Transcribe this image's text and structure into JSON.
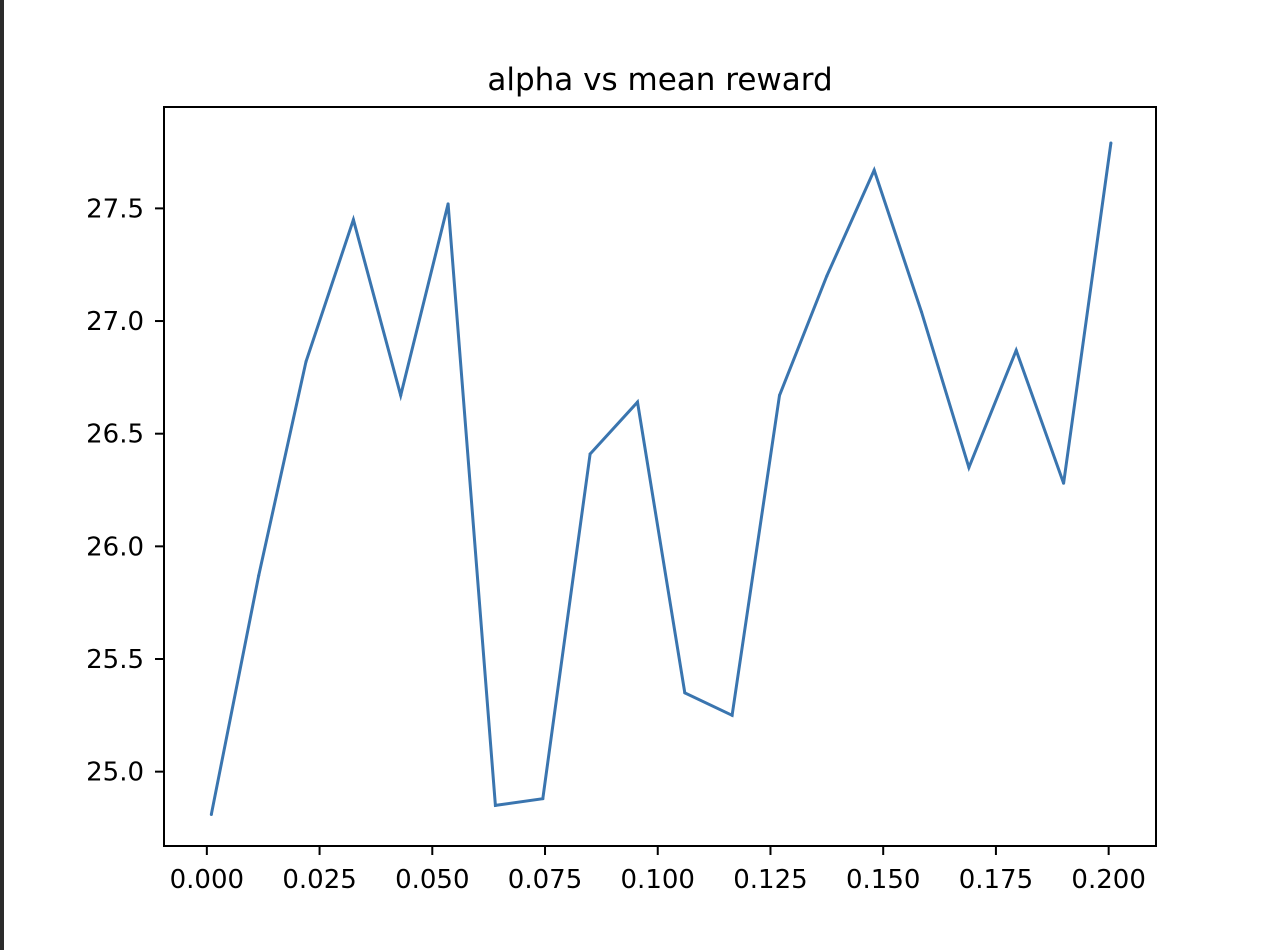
{
  "chart_data": {
    "type": "line",
    "title": "alpha vs mean reward",
    "xlabel": "",
    "ylabel": "",
    "xlim": [
      -0.0095,
      0.2105
    ],
    "ylim": [
      24.67,
      27.95
    ],
    "x_ticks": [
      0.0,
      0.025,
      0.05,
      0.075,
      0.1,
      0.125,
      0.15,
      0.175,
      0.2
    ],
    "x_tick_labels": [
      "0.000",
      "0.025",
      "0.050",
      "0.075",
      "0.100",
      "0.125",
      "0.150",
      "0.175",
      "0.200"
    ],
    "y_ticks": [
      25.0,
      25.5,
      26.0,
      26.5,
      27.0,
      27.5
    ],
    "y_tick_labels": [
      "25.0",
      "25.5",
      "26.0",
      "26.5",
      "27.0",
      "27.5"
    ],
    "grid": false,
    "series": [
      {
        "color": "#3a75af",
        "x": [
          0.001,
          0.0115,
          0.022,
          0.0325,
          0.043,
          0.0535,
          0.064,
          0.0745,
          0.085,
          0.0955,
          0.106,
          0.1165,
          0.127,
          0.1375,
          0.148,
          0.1585,
          0.169,
          0.1795,
          0.19,
          0.2005
        ],
        "y": [
          24.81,
          25.87,
          26.82,
          27.45,
          26.67,
          27.52,
          24.85,
          24.88,
          26.41,
          26.64,
          25.35,
          25.25,
          26.67,
          27.2,
          27.67,
          27.04,
          26.35,
          26.87,
          26.28,
          27.79
        ]
      }
    ]
  }
}
